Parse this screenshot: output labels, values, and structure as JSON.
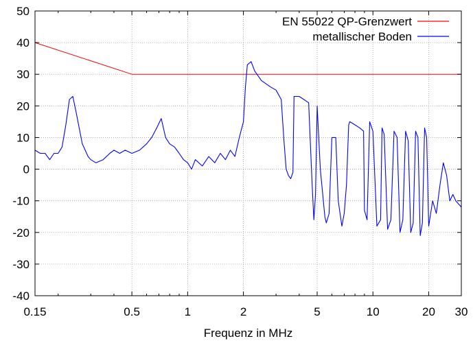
{
  "chart_data": {
    "type": "line",
    "title": "",
    "xlabel": "Frequenz in MHz",
    "ylabel": "",
    "x_scale": "log",
    "xlim": [
      0.15,
      30
    ],
    "ylim": [
      -40,
      50
    ],
    "x_ticks": [
      0.15,
      0.5,
      1,
      2,
      5,
      10,
      20,
      30
    ],
    "x_tick_labels": [
      "0.15",
      "0.5",
      "1",
      "2",
      "5",
      "10",
      "20",
      "30"
    ],
    "y_ticks": [
      -40,
      -30,
      -20,
      -10,
      0,
      10,
      20,
      30,
      40,
      50
    ],
    "y_tick_labels": [
      "-40",
      "-30",
      "-20",
      "-10",
      "0",
      "10",
      "20",
      "30",
      "40",
      "50"
    ],
    "grid": true,
    "legend_position": "top-right",
    "series": [
      {
        "name": "EN 55022 QP-Grenzwert",
        "color": "#ff0000",
        "x": [
          0.15,
          0.5,
          30
        ],
        "y": [
          40,
          30,
          30
        ]
      },
      {
        "name": "metallischer Boden",
        "color": "#0000ff",
        "x": [
          0.15,
          0.16,
          0.17,
          0.18,
          0.19,
          0.2,
          0.21,
          0.22,
          0.23,
          0.24,
          0.25,
          0.27,
          0.29,
          0.3,
          0.32,
          0.35,
          0.38,
          0.4,
          0.43,
          0.46,
          0.5,
          0.55,
          0.6,
          0.64,
          0.68,
          0.72,
          0.76,
          0.8,
          0.85,
          0.9,
          0.95,
          1.0,
          1.05,
          1.1,
          1.2,
          1.3,
          1.4,
          1.5,
          1.6,
          1.7,
          1.8,
          1.9,
          2.0,
          2.05,
          2.1,
          2.2,
          2.3,
          2.5,
          2.8,
          3.0,
          3.2,
          3.3,
          3.4,
          3.5,
          3.6,
          3.7,
          3.75,
          3.8,
          4.0,
          4.5,
          4.7,
          4.8,
          4.9,
          5.0,
          5.2,
          5.5,
          5.6,
          5.8,
          6.0,
          6.3,
          6.5,
          6.8,
          7.0,
          7.2,
          7.4,
          7.5,
          8.0,
          8.5,
          8.9,
          9.0,
          9.3,
          9.6,
          10.0,
          10.5,
          11.0,
          11.2,
          11.5,
          12.0,
          12.5,
          13.0,
          13.5,
          14.0,
          14.5,
          15.0,
          15.5,
          16.0,
          16.5,
          17.0,
          17.5,
          18.0,
          18.5,
          19.0,
          19.5,
          20.0,
          21.0,
          22.0,
          23.0,
          24.0,
          25.0,
          26.0,
          27.0,
          28.0,
          29.0,
          30.0
        ],
        "y": [
          6,
          5,
          5,
          3,
          5,
          5,
          7,
          14,
          22,
          23,
          18,
          8,
          4,
          3,
          2,
          3,
          5,
          6,
          5,
          6,
          5,
          6,
          8,
          10,
          13,
          16,
          10,
          8,
          7,
          5,
          3,
          2,
          0,
          3,
          1,
          4,
          2,
          5,
          3,
          6,
          4,
          10,
          15,
          26,
          33,
          34,
          31,
          28,
          26,
          25,
          22,
          10,
          0,
          -2,
          -3,
          -1,
          23,
          23,
          23,
          21,
          -5,
          -16,
          -8,
          20,
          0,
          -15,
          -17,
          -14,
          10,
          10,
          -10,
          -18,
          -14,
          -5,
          14,
          15,
          14,
          13,
          12,
          -13,
          -16,
          15,
          12,
          -18,
          -16,
          13,
          11,
          -19,
          -16,
          12,
          10,
          -20,
          -16,
          12,
          9,
          -20,
          -17,
          12,
          10,
          -21,
          -17,
          13,
          10,
          -18,
          -10,
          -14,
          -5,
          2,
          -2,
          -10,
          -8,
          -10,
          -11,
          -12
        ]
      }
    ]
  }
}
